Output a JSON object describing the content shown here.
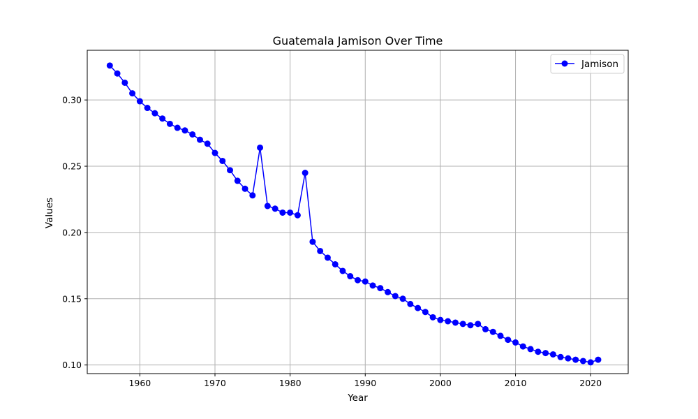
{
  "chart_data": {
    "type": "line",
    "title": "Guatemala Jamison Over Time",
    "xlabel": "Year",
    "ylabel": "Values",
    "xlim": [
      1953,
      2025
    ],
    "ylim": [
      0.0935,
      0.3375
    ],
    "xticks": [
      1960,
      1970,
      1980,
      1990,
      2000,
      2010,
      2020
    ],
    "yticks": [
      0.1,
      0.15,
      0.2,
      0.25,
      0.3
    ],
    "xtick_labels": [
      "1960",
      "1970",
      "1980",
      "1990",
      "2000",
      "2010",
      "2020"
    ],
    "ytick_labels": [
      "0.10",
      "0.15",
      "0.20",
      "0.25",
      "0.30"
    ],
    "grid": true,
    "legend_position": "top-right",
    "colors": {
      "series": "#0000ff",
      "grid": "#b0b0b0",
      "frame": "#000000"
    },
    "x": [
      1956,
      1957,
      1958,
      1959,
      1960,
      1961,
      1962,
      1963,
      1964,
      1965,
      1966,
      1967,
      1968,
      1969,
      1970,
      1971,
      1972,
      1973,
      1974,
      1975,
      1976,
      1977,
      1978,
      1979,
      1980,
      1981,
      1982,
      1983,
      1984,
      1985,
      1986,
      1987,
      1988,
      1989,
      1990,
      1991,
      1992,
      1993,
      1994,
      1995,
      1996,
      1997,
      1998,
      1999,
      2000,
      2001,
      2002,
      2003,
      2004,
      2005,
      2006,
      2007,
      2008,
      2009,
      2010,
      2011,
      2012,
      2013,
      2014,
      2015,
      2016,
      2017,
      2018,
      2019,
      2020,
      2021
    ],
    "series": [
      {
        "name": "Jamison",
        "values": [
          0.326,
          0.32,
          0.313,
          0.305,
          0.299,
          0.294,
          0.29,
          0.286,
          0.282,
          0.279,
          0.277,
          0.274,
          0.27,
          0.267,
          0.26,
          0.254,
          0.247,
          0.239,
          0.233,
          0.228,
          0.264,
          0.22,
          0.218,
          0.215,
          0.215,
          0.213,
          0.245,
          0.193,
          0.186,
          0.181,
          0.176,
          0.171,
          0.167,
          0.164,
          0.163,
          0.16,
          0.158,
          0.155,
          0.152,
          0.15,
          0.146,
          0.143,
          0.14,
          0.136,
          0.134,
          0.133,
          0.132,
          0.131,
          0.13,
          0.131,
          0.127,
          0.125,
          0.122,
          0.119,
          0.117,
          0.114,
          0.112,
          0.11,
          0.109,
          0.108,
          0.106,
          0.105,
          0.104,
          0.103,
          0.102,
          0.104
        ]
      }
    ]
  }
}
